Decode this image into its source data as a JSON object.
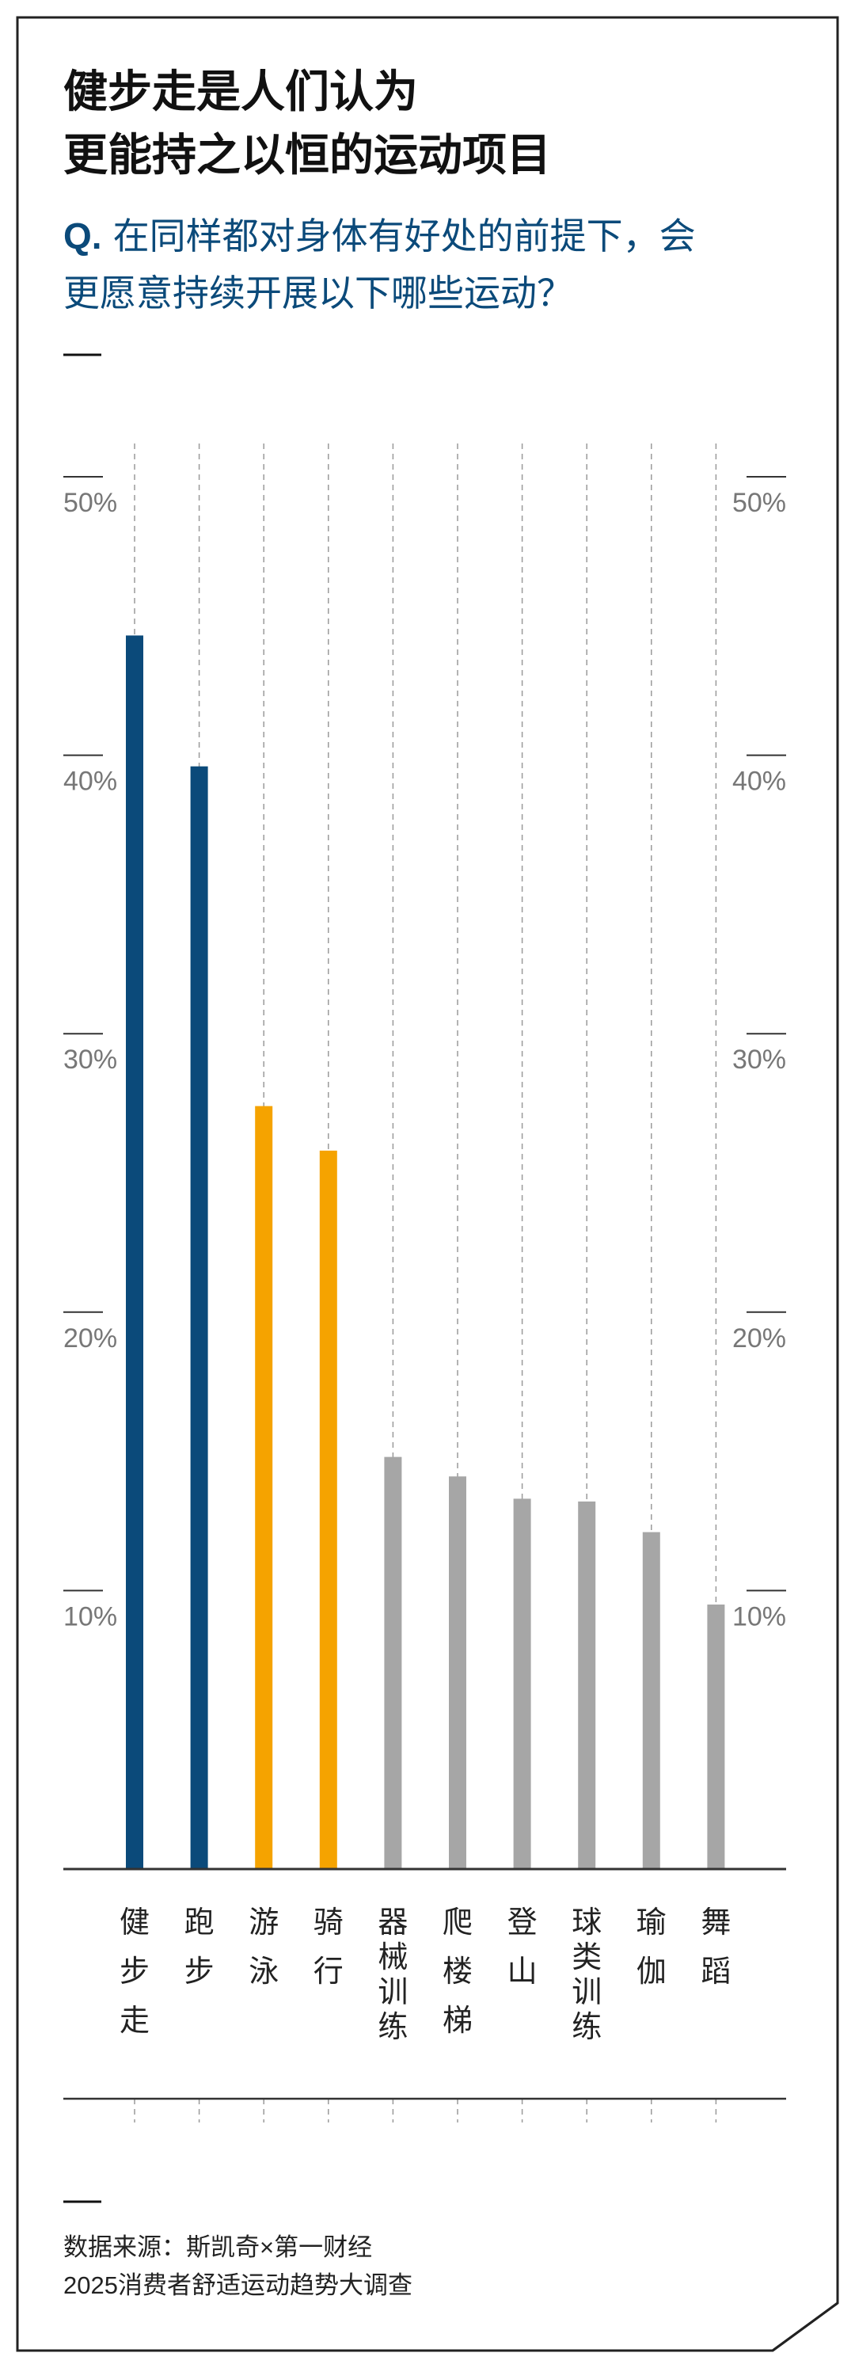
{
  "title_lines": [
    "健步走是人们认为",
    "更能持之以恒的运动项目"
  ],
  "question": {
    "prefix": "Q.",
    "lines": [
      "在同样都对身体有好处的前提下，会",
      "更愿意持续开展以下哪些运动？"
    ]
  },
  "source_lines": [
    "数据来源：斯凯奇×第一财经",
    "2025消费者舒适运动趋势大调查"
  ],
  "colors": {
    "highlight_blue": "#0b4a7a",
    "highlight_orange": "#f5a300",
    "neutral_gray": "#a6a6a6",
    "axis": "#333333",
    "tick_text": "#777777",
    "grid": "#9a9a9a"
  },
  "chart_data": {
    "type": "bar",
    "categories": [
      "健步走",
      "跑步",
      "游泳",
      "骑行",
      "器械训练",
      "爬楼梯",
      "登山",
      "球类训练",
      "瑜伽",
      "舞蹈"
    ],
    "category_labels": [
      [
        "健",
        "步",
        "走"
      ],
      [
        "跑",
        "步"
      ],
      [
        "游",
        "泳"
      ],
      [
        "骑",
        "行"
      ],
      [
        "器",
        "械",
        "训",
        "练"
      ],
      [
        "爬",
        "楼",
        "梯"
      ],
      [
        "登",
        "山"
      ],
      [
        "球",
        "类",
        "训",
        "练"
      ],
      [
        "瑜",
        "伽"
      ],
      [
        "舞",
        "蹈"
      ]
    ],
    "values": [
      44.3,
      39.6,
      27.4,
      25.8,
      14.8,
      14.1,
      13.3,
      13.2,
      12.1,
      9.5
    ],
    "bar_colors": [
      "highlight_blue",
      "highlight_blue",
      "highlight_orange",
      "highlight_orange",
      "neutral_gray",
      "neutral_gray",
      "neutral_gray",
      "neutral_gray",
      "neutral_gray",
      "neutral_gray"
    ],
    "unit": "%",
    "ylim": [
      0,
      50
    ],
    "yticks": [
      10,
      20,
      30,
      40,
      50
    ],
    "ytick_labels": [
      "10%",
      "20%",
      "30%",
      "40%",
      "50%"
    ],
    "grid": true,
    "title": "",
    "xlabel": "",
    "ylabel": ""
  }
}
